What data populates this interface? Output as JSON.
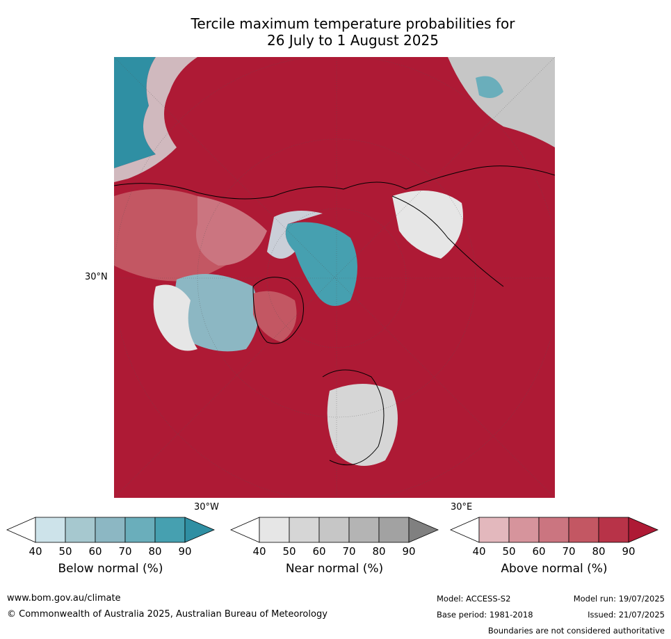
{
  "title_line1": "Tercile maximum temperature probabilities for",
  "title_line2": "26 July to 1 August 2025",
  "graticule": {
    "lat_label": "30°N",
    "lon_label_west": "30°W",
    "lon_label_east": "30°E"
  },
  "legends": [
    {
      "title": "Below normal (%)",
      "ticks": [
        "40",
        "50",
        "60",
        "70",
        "80",
        "90"
      ],
      "colors": [
        "#ffffff",
        "#cde3ea",
        "#a6c8cf",
        "#8cb7c3",
        "#6aaebb",
        "#46a0b0",
        "#2f8fa3"
      ]
    },
    {
      "title": "Near normal (%)",
      "ticks": [
        "40",
        "50",
        "60",
        "70",
        "80",
        "90"
      ],
      "colors": [
        "#ffffff",
        "#e6e6e6",
        "#d6d6d6",
        "#c6c6c6",
        "#b4b4b4",
        "#a2a2a2",
        "#808080"
      ]
    },
    {
      "title": "Above normal (%)",
      "ticks": [
        "40",
        "50",
        "60",
        "70",
        "80",
        "90"
      ],
      "colors": [
        "#ffffff",
        "#e3b8bd",
        "#d6949c",
        "#cb7580",
        "#c35763",
        "#b83348",
        "#ae1a35"
      ]
    }
  ],
  "footer": {
    "website": "www.bom.gov.au/climate",
    "copyright": "© Commonwealth of Australia 2025, Australian Bureau of Meteorology",
    "model": "Model: ACCESS-S2",
    "model_run": "Model run: 19/07/2025",
    "base_period": "Base period: 1981-2018",
    "issued": "Issued: 21/07/2025",
    "disclaimer": "Boundaries are not considered authoritative"
  }
}
